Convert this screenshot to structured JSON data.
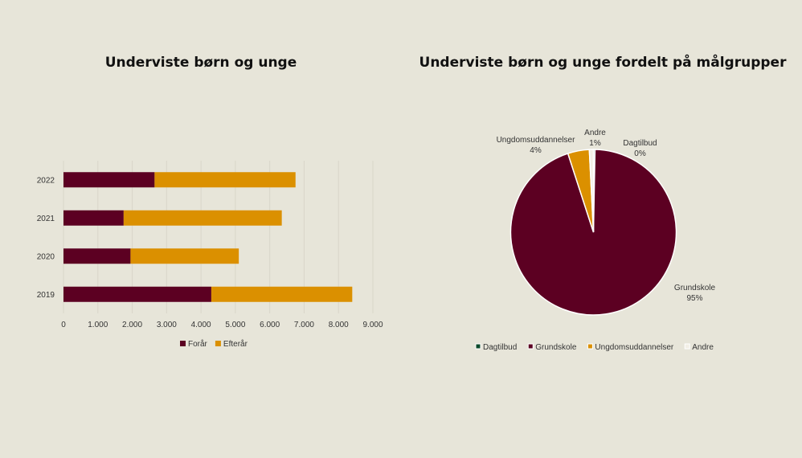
{
  "chart_data": [
    {
      "type": "bar",
      "orientation": "horizontal",
      "stacked": true,
      "title": "Underviste børn og unge",
      "categories": [
        "2019",
        "2020",
        "2021",
        "2022"
      ],
      "series": [
        {
          "name": "Forår",
          "values": [
            4300,
            1950,
            1750,
            2650
          ],
          "color": "#5c0022"
        },
        {
          "name": "Efterår",
          "values": [
            4100,
            3150,
            4600,
            4100
          ],
          "color": "#db9000"
        }
      ],
      "xlim": [
        0,
        9000
      ],
      "xticks": [
        0,
        1000,
        2000,
        3000,
        4000,
        5000,
        6000,
        7000,
        8000,
        9000
      ],
      "xtick_labels": [
        "0",
        "1.000",
        "2.000",
        "3.000",
        "4.000",
        "5.000",
        "6.000",
        "7.000",
        "8.000",
        "9.000"
      ],
      "grid": true,
      "legend_position": "bottom"
    },
    {
      "type": "pie",
      "title": "Underviste børn og unge fordelt på målgrupper",
      "slices": [
        {
          "name": "Dagtilbud",
          "value": 0.3,
          "label": "0%",
          "color": "#0b4a2a"
        },
        {
          "name": "Grundskole",
          "value": 94.7,
          "label": "95%",
          "color": "#5c0022"
        },
        {
          "name": "Ungdomsuddannelser",
          "value": 4.2,
          "label": "4%",
          "color": "#db9000"
        },
        {
          "name": "Andre",
          "value": 0.8,
          "label": "1%",
          "color": "#f2efe6"
        }
      ],
      "legend_position": "bottom"
    }
  ]
}
